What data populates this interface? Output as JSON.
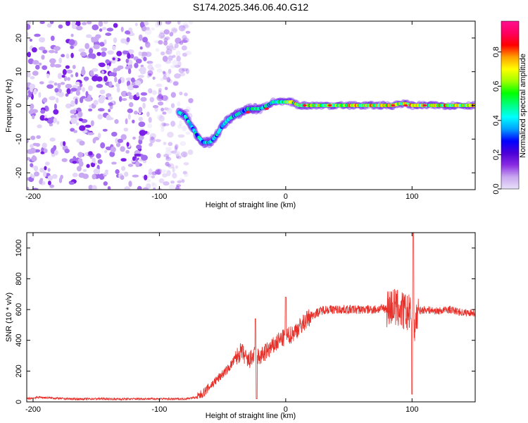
{
  "title": "S174.2025.346.06.40.G12",
  "chart_data": [
    {
      "type": "heatmap",
      "xlabel": "Height of straight line (km)",
      "ylabel": "Frequency (Hz)",
      "xlim": [
        -205,
        150
      ],
      "ylim": [
        -25,
        25
      ],
      "xticks": [
        -200,
        -100,
        0,
        100
      ],
      "yticks": [
        -20,
        -10,
        0,
        10,
        20
      ],
      "grid": false,
      "ridge": {
        "x": [
          -85,
          -80,
          -75,
          -70,
          -65,
          -60,
          -55,
          -50,
          -45,
          -40,
          -35,
          -30,
          -25,
          -20,
          -15,
          -10,
          -5,
          0,
          5,
          10,
          20,
          30,
          40,
          60,
          80,
          85,
          90,
          95,
          100,
          120,
          150
        ],
        "y": [
          -2,
          -3,
          -6,
          -9,
          -11,
          -11,
          -9,
          -6,
          -4,
          -3,
          -2,
          -1,
          -1,
          -1,
          0,
          1,
          1,
          1,
          1,
          0,
          0,
          0,
          0,
          0,
          0,
          0,
          0.5,
          0.5,
          0,
          0,
          0
        ]
      },
      "noise_region_x": [
        -205,
        -75
      ],
      "colorbar": {
        "label": "Normalized spectral amplitude",
        "range": [
          0.0,
          0.98
        ],
        "ticks": [
          0.0,
          0.2,
          0.4,
          0.6,
          0.8
        ],
        "tick_labels": [
          "0.0",
          "0.2",
          "0.4",
          "0.6",
          "0.8"
        ],
        "colormap": [
          "#e8e0f8",
          "#c9a8f0",
          "#8a2be2",
          "#4b00d8",
          "#0000ff",
          "#00a0ff",
          "#00ffff",
          "#00ff80",
          "#00ff00",
          "#a0ff00",
          "#ffff00",
          "#ffa000",
          "#ff0000",
          "#ff0060",
          "#ff1090"
        ]
      }
    },
    {
      "type": "line",
      "xlabel": "Height of straight line (km)",
      "ylabel": "SNR (10 * v/v)",
      "xlim": [
        -205,
        150
      ],
      "ylim": [
        0,
        1100
      ],
      "xticks": [
        -200,
        -100,
        0,
        100
      ],
      "yticks": [
        0,
        200,
        400,
        600,
        800,
        1000
      ],
      "color": "#e8302a",
      "grid": false,
      "series": [
        {
          "x": [
            -205,
            -195,
            -185,
            -175,
            -165,
            -150,
            -130,
            -110,
            -100,
            -90,
            -80,
            -70,
            -65,
            -60,
            -55,
            -50,
            -45,
            -40,
            -35,
            -30,
            -25,
            -20,
            -15,
            -10,
            -5,
            0,
            5,
            10,
            15,
            20,
            25,
            30,
            40,
            50,
            60,
            70,
            80,
            85,
            90,
            95,
            100,
            102,
            105,
            110,
            120,
            130,
            140,
            150
          ],
          "y": [
            20,
            30,
            25,
            20,
            18,
            20,
            18,
            20,
            20,
            18,
            20,
            30,
            60,
            100,
            140,
            180,
            220,
            280,
            330,
            260,
            300,
            290,
            330,
            360,
            400,
            420,
            440,
            480,
            520,
            560,
            580,
            600,
            600,
            600,
            600,
            600,
            610,
            620,
            600,
            580,
            560,
            500,
            590,
            600,
            590,
            600,
            580,
            580
          ]
        }
      ]
    }
  ]
}
